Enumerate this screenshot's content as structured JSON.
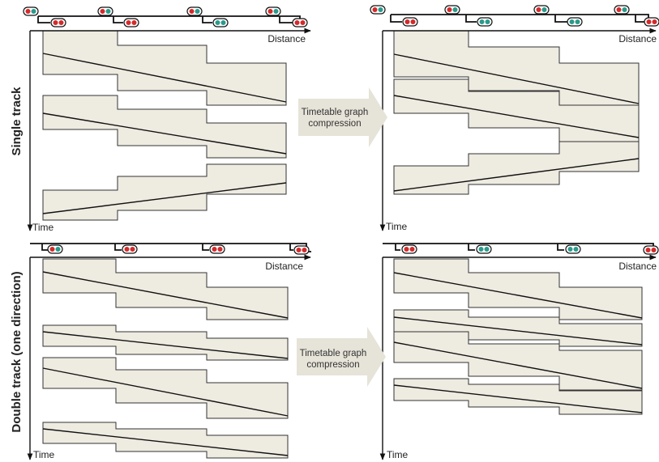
{
  "rows": [
    {
      "label": "Single track"
    },
    {
      "label": "Double track (one direction)"
    }
  ],
  "axis": {
    "distance": "Distance",
    "time": "Time"
  },
  "arrow": {
    "line1": "Timetable graph",
    "line2": "compression"
  },
  "colors": {
    "occupation_fill": "#eeebe1",
    "signal_red": "#d42a2a",
    "signal_green": "#2a9a8c",
    "arrow_fill": "#e6e3d8"
  },
  "icons": [
    "signal-icon"
  ],
  "panels": [
    "single-track-original",
    "single-track-compressed",
    "double-track-original",
    "double-track-compressed"
  ]
}
